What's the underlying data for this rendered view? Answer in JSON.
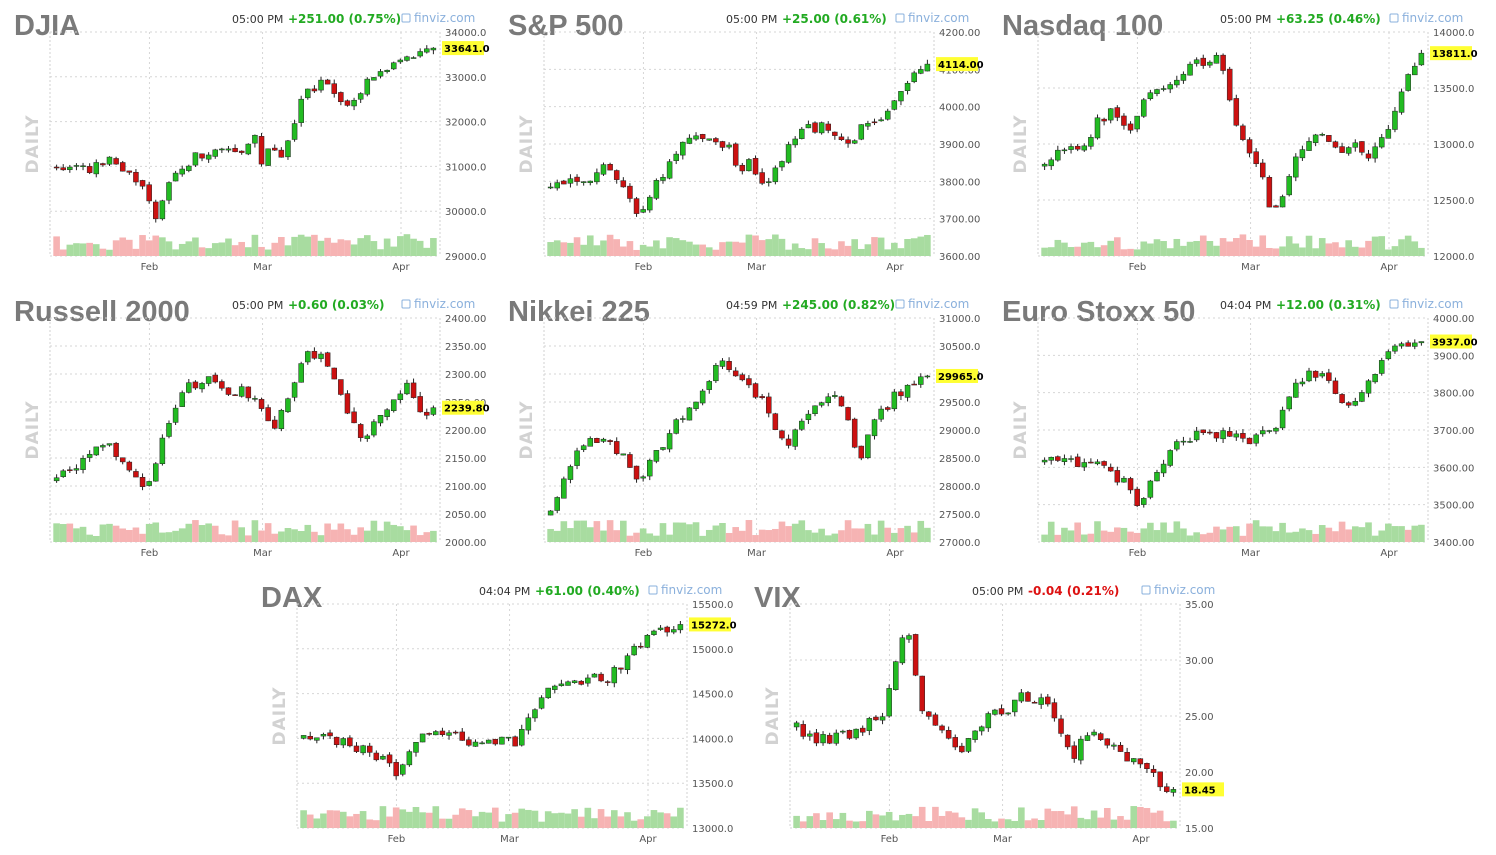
{
  "common": {
    "source": "finviz.com",
    "period_label": "DAILY",
    "months": [
      "Feb",
      "Mar",
      "Apr"
    ],
    "colors": {
      "up": "#22bb22",
      "down": "#cc1111",
      "vol_up": "#a8dca0",
      "vol_down": "#f6b3b3",
      "last_bg": "#ffff33",
      "pos": "#22aa22",
      "neg": "#dd1111"
    }
  },
  "chart_data": [
    {
      "type": "candlestick",
      "name": "DJIA",
      "time": "05:00 PM",
      "change": "+251.00 (0.75%)",
      "change_dir": "up",
      "y_ticks": [
        "34000.0",
        "33000.0",
        "32000.0",
        "31000.0",
        "30000.0",
        "29000.0"
      ],
      "ylim": [
        29000,
        34000
      ],
      "last_label": "33641.0",
      "last": 33641,
      "points": [
        [
          0,
          30950
        ],
        [
          6,
          31000
        ],
        [
          10,
          30950
        ],
        [
          15,
          31200
        ],
        [
          18,
          30850
        ],
        [
          22,
          30700
        ],
        [
          25,
          30150
        ],
        [
          27,
          29850
        ],
        [
          30,
          30600
        ],
        [
          35,
          31100
        ],
        [
          40,
          31350
        ],
        [
          45,
          31450
        ],
        [
          50,
          31400
        ],
        [
          52,
          31850
        ],
        [
          54,
          31000
        ],
        [
          57,
          31500
        ],
        [
          60,
          31200
        ],
        [
          65,
          32500
        ],
        [
          70,
          32850
        ],
        [
          74,
          32600
        ],
        [
          78,
          32200
        ],
        [
          82,
          32950
        ],
        [
          86,
          33000
        ],
        [
          90,
          33350
        ],
        [
          94,
          33450
        ],
        [
          97,
          33500
        ],
        [
          100,
          33641
        ]
      ]
    },
    {
      "type": "candlestick",
      "name": "S&P 500",
      "time": "05:00 PM",
      "change": "+25.00 (0.61%)",
      "change_dir": "up",
      "y_ticks": [
        "4200.00",
        "4100.00",
        "4000.00",
        "3900.00",
        "3800.00",
        "3700.00",
        "3600.00"
      ],
      "ylim": [
        3600,
        4200
      ],
      "last_label": "4114.00",
      "last": 4114,
      "points": [
        [
          0,
          3780
        ],
        [
          6,
          3800
        ],
        [
          10,
          3780
        ],
        [
          15,
          3850
        ],
        [
          18,
          3810
        ],
        [
          22,
          3720
        ],
        [
          25,
          3710
        ],
        [
          28,
          3790
        ],
        [
          32,
          3860
        ],
        [
          35,
          3900
        ],
        [
          40,
          3930
        ],
        [
          45,
          3910
        ],
        [
          48,
          3880
        ],
        [
          50,
          3820
        ],
        [
          53,
          3850
        ],
        [
          57,
          3790
        ],
        [
          60,
          3830
        ],
        [
          64,
          3900
        ],
        [
          68,
          3940
        ],
        [
          72,
          3950
        ],
        [
          76,
          3920
        ],
        [
          80,
          3910
        ],
        [
          84,
          3960
        ],
        [
          88,
          3980
        ],
        [
          92,
          4030
        ],
        [
          96,
          4080
        ],
        [
          100,
          4114
        ]
      ]
    },
    {
      "type": "candlestick",
      "name": "Nasdaq 100",
      "time": "05:00 PM",
      "change": "+63.25 (0.46%)",
      "change_dir": "up",
      "y_ticks": [
        "14000.0",
        "13500.0",
        "13000.0",
        "12500.0",
        "12000.0"
      ],
      "ylim": [
        12000,
        14000
      ],
      "last_label": "13811.0",
      "last": 13811,
      "points": [
        [
          0,
          12800
        ],
        [
          5,
          13000
        ],
        [
          10,
          12900
        ],
        [
          14,
          13200
        ],
        [
          18,
          13300
        ],
        [
          22,
          13100
        ],
        [
          26,
          13350
        ],
        [
          30,
          13500
        ],
        [
          35,
          13600
        ],
        [
          40,
          13700
        ],
        [
          45,
          13800
        ],
        [
          48,
          13600
        ],
        [
          50,
          13200
        ],
        [
          54,
          12900
        ],
        [
          58,
          12700
        ],
        [
          60,
          12400
        ],
        [
          63,
          12500
        ],
        [
          66,
          12800
        ],
        [
          70,
          13050
        ],
        [
          74,
          13100
        ],
        [
          78,
          12900
        ],
        [
          82,
          13050
        ],
        [
          86,
          12900
        ],
        [
          90,
          13050
        ],
        [
          94,
          13400
        ],
        [
          97,
          13650
        ],
        [
          100,
          13811
        ]
      ]
    },
    {
      "type": "candlestick",
      "name": "Russell 2000",
      "time": "05:00 PM",
      "change": "+0.60 (0.03%)",
      "change_dir": "up",
      "y_ticks": [
        "2400.00",
        "2350.00",
        "2300.00",
        "2250.00",
        "2200.00",
        "2150.00",
        "2100.00",
        "2050.00",
        "2000.00"
      ],
      "ylim": [
        2000,
        2400
      ],
      "last_label": "2239.80",
      "last": 2239.8,
      "points": [
        [
          0,
          2110
        ],
        [
          6,
          2140
        ],
        [
          10,
          2160
        ],
        [
          15,
          2170
        ],
        [
          18,
          2140
        ],
        [
          22,
          2110
        ],
        [
          25,
          2100
        ],
        [
          28,
          2180
        ],
        [
          32,
          2240
        ],
        [
          35,
          2280
        ],
        [
          40,
          2290
        ],
        [
          45,
          2260
        ],
        [
          50,
          2270
        ],
        [
          54,
          2240
        ],
        [
          58,
          2200
        ],
        [
          62,
          2270
        ],
        [
          66,
          2330
        ],
        [
          70,
          2340
        ],
        [
          74,
          2290
        ],
        [
          78,
          2220
        ],
        [
          82,
          2180
        ],
        [
          86,
          2230
        ],
        [
          90,
          2260
        ],
        [
          93,
          2290
        ],
        [
          96,
          2230
        ],
        [
          100,
          2239.8
        ]
      ]
    },
    {
      "type": "candlestick",
      "name": "Nikkei 225",
      "time": "04:59 PM",
      "change": "+245.00 (0.82%)",
      "change_dir": "up",
      "y_ticks": [
        "31000.0",
        "30500.0",
        "30000.0",
        "29500.0",
        "29000.0",
        "28500.0",
        "28000.0",
        "27500.0",
        "27000.0"
      ],
      "ylim": [
        27000,
        31000
      ],
      "last_label": "29965.0",
      "last": 29965,
      "points": [
        [
          0,
          27500
        ],
        [
          4,
          28200
        ],
        [
          8,
          28700
        ],
        [
          12,
          28800
        ],
        [
          16,
          28700
        ],
        [
          20,
          28600
        ],
        [
          23,
          28000
        ],
        [
          26,
          28400
        ],
        [
          30,
          28800
        ],
        [
          34,
          29200
        ],
        [
          38,
          29400
        ],
        [
          42,
          29800
        ],
        [
          45,
          30300
        ],
        [
          48,
          30100
        ],
        [
          52,
          29800
        ],
        [
          56,
          29500
        ],
        [
          60,
          29000
        ],
        [
          63,
          28800
        ],
        [
          67,
          29100
        ],
        [
          71,
          29500
        ],
        [
          75,
          29700
        ],
        [
          79,
          29100
        ],
        [
          82,
          28500
        ],
        [
          86,
          29200
        ],
        [
          90,
          29500
        ],
        [
          93,
          29700
        ],
        [
          96,
          29800
        ],
        [
          100,
          29965
        ]
      ]
    },
    {
      "type": "candlestick",
      "name": "Euro Stoxx 50",
      "time": "04:04 PM",
      "change": "+12.00 (0.31%)",
      "change_dir": "up",
      "y_ticks": [
        "4000.00",
        "3900.00",
        "3800.00",
        "3700.00",
        "3600.00",
        "3500.00",
        "3400.00"
      ],
      "ylim": [
        3400,
        4000
      ],
      "last_label": "3937.00",
      "last": 3937,
      "points": [
        [
          0,
          3610
        ],
        [
          6,
          3620
        ],
        [
          10,
          3600
        ],
        [
          15,
          3600
        ],
        [
          18,
          3580
        ],
        [
          22,
          3550
        ],
        [
          25,
          3480
        ],
        [
          28,
          3560
        ],
        [
          32,
          3630
        ],
        [
          35,
          3660
        ],
        [
          40,
          3690
        ],
        [
          45,
          3690
        ],
        [
          50,
          3680
        ],
        [
          53,
          3670
        ],
        [
          57,
          3690
        ],
        [
          60,
          3690
        ],
        [
          64,
          3760
        ],
        [
          67,
          3820
        ],
        [
          70,
          3850
        ],
        [
          74,
          3860
        ],
        [
          78,
          3790
        ],
        [
          82,
          3770
        ],
        [
          86,
          3830
        ],
        [
          90,
          3890
        ],
        [
          94,
          3920
        ],
        [
          100,
          3937
        ]
      ]
    },
    {
      "type": "candlestick",
      "name": "DAX",
      "time": "04:04 PM",
      "change": "+61.00 (0.40%)",
      "change_dir": "up",
      "y_ticks": [
        "15500.0",
        "15000.0",
        "14500.0",
        "14000.0",
        "13500.0",
        "13000.0"
      ],
      "ylim": [
        13000,
        15500
      ],
      "last_label": "15272.0",
      "last": 15272,
      "points": [
        [
          0,
          13990
        ],
        [
          6,
          14000
        ],
        [
          10,
          13950
        ],
        [
          15,
          13900
        ],
        [
          18,
          13850
        ],
        [
          22,
          13750
        ],
        [
          25,
          13600
        ],
        [
          28,
          13850
        ],
        [
          32,
          14050
        ],
        [
          35,
          14100
        ],
        [
          40,
          14050
        ],
        [
          45,
          13900
        ],
        [
          50,
          13950
        ],
        [
          53,
          14000
        ],
        [
          57,
          13950
        ],
        [
          60,
          14300
        ],
        [
          64,
          14500
        ],
        [
          68,
          14550
        ],
        [
          72,
          14600
        ],
        [
          76,
          14700
        ],
        [
          80,
          14650
        ],
        [
          84,
          14800
        ],
        [
          88,
          15000
        ],
        [
          92,
          15150
        ],
        [
          96,
          15200
        ],
        [
          100,
          15272
        ]
      ]
    },
    {
      "type": "candlestick",
      "name": "VIX",
      "time": "05:00 PM",
      "change": "-0.04 (0.21%)",
      "change_dir": "down",
      "y_ticks": [
        "35.00",
        "30.00",
        "25.00",
        "20.00",
        "15.00"
      ],
      "ylim": [
        15,
        35
      ],
      "last_label": "18.45",
      "last": 18.45,
      "points": [
        [
          0,
          24
        ],
        [
          5,
          23
        ],
        [
          10,
          23
        ],
        [
          15,
          23.5
        ],
        [
          20,
          24.5
        ],
        [
          23,
          25
        ],
        [
          25,
          28
        ],
        [
          27,
          31
        ],
        [
          29,
          33
        ],
        [
          31,
          30
        ],
        [
          33,
          26
        ],
        [
          36,
          24
        ],
        [
          40,
          23
        ],
        [
          44,
          22
        ],
        [
          48,
          24
        ],
        [
          52,
          25.5
        ],
        [
          56,
          25
        ],
        [
          60,
          27
        ],
        [
          63,
          26.5
        ],
        [
          66,
          26
        ],
        [
          70,
          24
        ],
        [
          73,
          21
        ],
        [
          76,
          23.5
        ],
        [
          80,
          23.5
        ],
        [
          84,
          22
        ],
        [
          88,
          21
        ],
        [
          92,
          20.5
        ],
        [
          96,
          19
        ],
        [
          100,
          18.45
        ]
      ]
    }
  ]
}
